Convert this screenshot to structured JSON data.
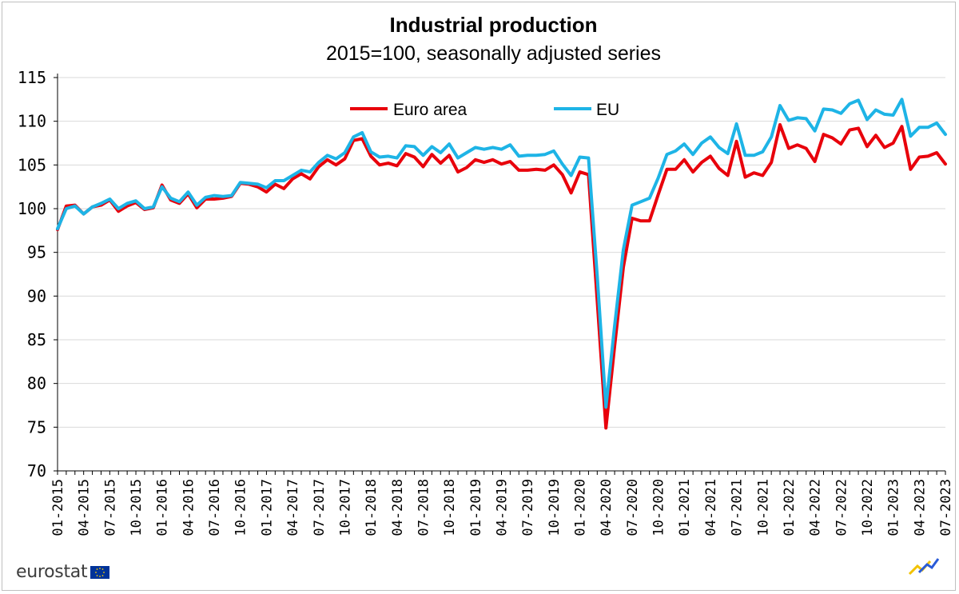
{
  "chart_data": {
    "type": "line",
    "title": "Industrial production",
    "subtitle": "2015=100, seasonally adjusted series",
    "ylim": [
      70,
      115
    ],
    "yticks": [
      70,
      75,
      80,
      85,
      90,
      95,
      100,
      105,
      110,
      115
    ],
    "x_tick_labels": [
      "01-2015",
      "04-2015",
      "07-2015",
      "10-2015",
      "01-2016",
      "04-2016",
      "07-2016",
      "10-2016",
      "01-2017",
      "04-2017",
      "07-2017",
      "10-2017",
      "01-2018",
      "04-2018",
      "07-2018",
      "10-2018",
      "01-2019",
      "04-2019",
      "07-2019",
      "10-2019",
      "01-2020",
      "04-2020",
      "07-2020",
      "10-2020",
      "01-2021",
      "04-2021",
      "07-2021",
      "10-2021",
      "01-2022",
      "04-2022",
      "07-2022",
      "10-2022",
      "01-2023",
      "04-2023",
      "07-2023"
    ],
    "x_start": "01-2015",
    "x_end": "07-2023",
    "grid": "horizontal",
    "legend_position": "top-center",
    "series": [
      {
        "name": "Euro area",
        "color": "#e8000b",
        "values": [
          97.6,
          100.3,
          100.4,
          99.4,
          100.2,
          100.4,
          101.0,
          99.7,
          100.3,
          100.7,
          99.9,
          100.1,
          102.7,
          101.0,
          100.6,
          101.7,
          100.1,
          101.1,
          101.1,
          101.2,
          101.4,
          102.9,
          102.8,
          102.5,
          101.9,
          102.8,
          102.3,
          103.4,
          104.0,
          103.4,
          104.8,
          105.6,
          105.0,
          105.7,
          107.8,
          108.0,
          106.0,
          105.0,
          105.2,
          104.9,
          106.3,
          105.9,
          104.8,
          106.2,
          105.2,
          106.1,
          104.2,
          104.7,
          105.6,
          105.3,
          105.6,
          105.1,
          105.4,
          104.4,
          104.4,
          104.5,
          104.4,
          105.0,
          103.9,
          101.8,
          104.2,
          103.9,
          89.5,
          74.9,
          84.3,
          93.3,
          98.9,
          98.6,
          98.6,
          101.6,
          104.5,
          104.5,
          105.6,
          104.2,
          105.3,
          106.0,
          104.6,
          103.8,
          107.7,
          103.6,
          104.1,
          103.8,
          105.3,
          109.6,
          106.9,
          107.3,
          106.9,
          105.4,
          108.5,
          108.1,
          107.4,
          109.0,
          109.2,
          107.1,
          108.4,
          107.0,
          107.5,
          109.4,
          104.5,
          105.9,
          106.0,
          106.4,
          105.1
        ]
      },
      {
        "name": "EU",
        "color": "#1eb4e6",
        "values": [
          97.7,
          100.0,
          100.3,
          99.4,
          100.2,
          100.6,
          101.1,
          100.0,
          100.6,
          100.9,
          100.0,
          100.2,
          102.5,
          101.2,
          100.8,
          101.9,
          100.4,
          101.3,
          101.5,
          101.4,
          101.5,
          103.0,
          102.9,
          102.8,
          102.4,
          103.2,
          103.2,
          103.8,
          104.4,
          104.2,
          105.3,
          106.1,
          105.7,
          106.4,
          108.2,
          108.7,
          106.5,
          105.9,
          106.0,
          105.8,
          107.2,
          107.1,
          106.1,
          107.1,
          106.4,
          107.4,
          105.8,
          106.4,
          107.0,
          106.8,
          107.0,
          106.8,
          107.3,
          106.0,
          106.1,
          106.1,
          106.2,
          106.6,
          105.1,
          103.8,
          105.9,
          105.8,
          92.3,
          77.3,
          86.6,
          95.3,
          100.4,
          100.8,
          101.2,
          103.5,
          106.2,
          106.6,
          107.4,
          106.2,
          107.5,
          108.2,
          107.0,
          106.3,
          109.7,
          106.1,
          106.1,
          106.5,
          108.2,
          111.8,
          110.1,
          110.4,
          110.3,
          108.9,
          111.4,
          111.3,
          110.9,
          112.0,
          112.4,
          110.2,
          111.3,
          110.8,
          110.7,
          112.5,
          108.3,
          109.3,
          109.3,
          109.8,
          108.5
        ]
      }
    ]
  },
  "logo": {
    "text": "eurostat"
  }
}
